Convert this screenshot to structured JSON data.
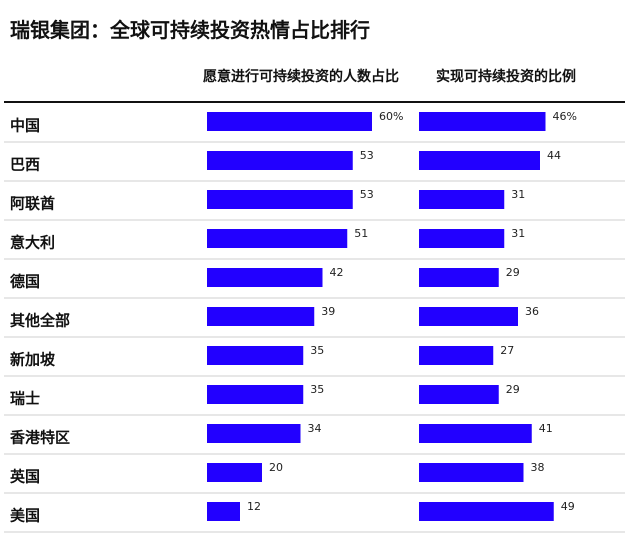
{
  "title": "瑞银集团：全球可持续投资热情占比排行",
  "chart_data": {
    "type": "bar",
    "title": "瑞银集团：全球可持续投资热情占比排行",
    "categories": [
      "中国",
      "巴西",
      "阿联酋",
      "意大利",
      "德国",
      "其他全部",
      "新加坡",
      "瑞士",
      "香港特区",
      "英国",
      "美国"
    ],
    "series": [
      {
        "name": "愿意进行可持续投资的人数占比",
        "values": [
          60,
          53,
          53,
          51,
          42,
          39,
          35,
          35,
          34,
          20,
          12
        ],
        "labels": [
          "60%",
          "53",
          "53",
          "51",
          "42",
          "39",
          "35",
          "35",
          "34",
          "20",
          "12"
        ]
      },
      {
        "name": "实现可持续投资的比例",
        "values": [
          46,
          44,
          31,
          31,
          29,
          36,
          27,
          29,
          41,
          38,
          49
        ],
        "labels": [
          "46%",
          "44",
          "31",
          "31",
          "29",
          "36",
          "27",
          "29",
          "41",
          "38",
          "49"
        ]
      }
    ],
    "bar_color": "#2200ff",
    "orientation": "horizontal"
  }
}
